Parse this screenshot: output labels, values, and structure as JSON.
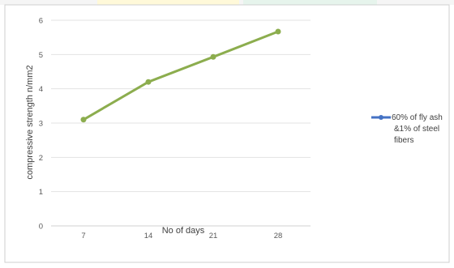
{
  "chart_data": {
    "type": "line",
    "title": "",
    "xlabel": "No of days",
    "ylabel": "compressive strength n/mm2",
    "categories": [
      "7",
      "14",
      "21",
      "28"
    ],
    "ylim": [
      0,
      6
    ],
    "y_ticks": [
      0,
      1,
      2,
      3,
      4,
      5,
      6
    ],
    "grid": true,
    "legend_position": "right",
    "series": [
      {
        "name": "60% of fly ash &1% of steel fibers",
        "values": [
          3.1,
          4.2,
          4.93,
          5.67
        ],
        "line_color": "#8CAD4E",
        "legend_color": "#4472C4"
      }
    ]
  },
  "legend": {
    "lines": [
      "60% of fly ash",
      "&1% of steel",
      "fibers"
    ]
  },
  "colors": {
    "gridline": "#E3E3E3",
    "axis": "#D0D0D0",
    "frame": "#CFCFCF"
  }
}
